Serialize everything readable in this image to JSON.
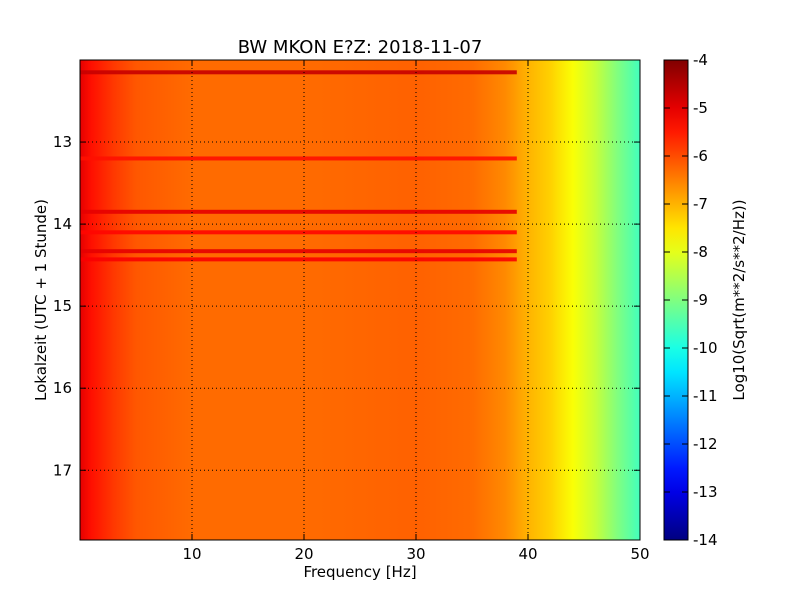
{
  "chart_data": {
    "type": "heatmap",
    "title": "BW MKON E?Z: 2018-11-07",
    "xlabel": "Frequency [Hz]",
    "ylabel": "Lokalzeit (UTC + 1 Stunde)",
    "xlim": [
      0,
      50
    ],
    "ylim": [
      12.0,
      17.85
    ],
    "y_inverted": true,
    "x_ticks": [
      {
        "value": 10,
        "label": "10"
      },
      {
        "value": 20,
        "label": "20"
      },
      {
        "value": 30,
        "label": "30"
      },
      {
        "value": 40,
        "label": "40"
      },
      {
        "value": 50,
        "label": "50"
      }
    ],
    "y_ticks": [
      {
        "value": 13,
        "label": "13"
      },
      {
        "value": 14,
        "label": "14"
      },
      {
        "value": 15,
        "label": "15"
      },
      {
        "value": 16,
        "label": "16"
      },
      {
        "value": 17,
        "label": "17"
      }
    ],
    "grid": true,
    "colormap": "jet",
    "colorbar": {
      "label": "Log10(Sqrt(m**2/s**2/Hz))",
      "min": -14,
      "max": -4,
      "ticks": [
        "-4",
        "-5",
        "-6",
        "-7",
        "-8",
        "-9",
        "-10",
        "-11",
        "-12",
        "-13",
        "-14"
      ]
    },
    "spectrum_profile": [
      {
        "freq": 0,
        "value": -5.0
      },
      {
        "freq": 1,
        "value": -5.4
      },
      {
        "freq": 3,
        "value": -5.8
      },
      {
        "freq": 5,
        "value": -6.1
      },
      {
        "freq": 10,
        "value": -6.3
      },
      {
        "freq": 20,
        "value": -6.3
      },
      {
        "freq": 30,
        "value": -6.2
      },
      {
        "freq": 35,
        "value": -6.3
      },
      {
        "freq": 38,
        "value": -6.6
      },
      {
        "freq": 40,
        "value": -7.0
      },
      {
        "freq": 42,
        "value": -7.3
      },
      {
        "freq": 44,
        "value": -7.8
      },
      {
        "freq": 46,
        "value": -8.3
      },
      {
        "freq": 48,
        "value": -9.0
      },
      {
        "freq": 50,
        "value": -9.6
      }
    ],
    "high_energy_bands": [
      {
        "time": 12.15,
        "value": -4.7
      },
      {
        "time": 13.2,
        "value": -5.4
      },
      {
        "time": 13.85,
        "value": -5.0
      },
      {
        "time": 14.1,
        "value": -5.3
      },
      {
        "time": 14.33,
        "value": -5.0
      },
      {
        "time": 14.43,
        "value": -5.2
      }
    ]
  }
}
